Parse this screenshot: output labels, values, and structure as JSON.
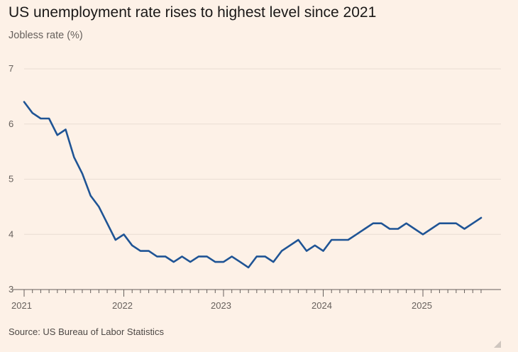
{
  "chart_data": {
    "type": "line",
    "title": "US unemployment rate rises to highest level since 2021",
    "ylabel": "Jobless rate (%)",
    "xlabel": "",
    "source": "Source: US Bureau of Labor Statistics",
    "ylim": [
      3,
      7
    ],
    "yticks": [
      "3",
      "4",
      "5",
      "6",
      "7"
    ],
    "xticks": [
      "2021",
      "2022",
      "2023",
      "2024",
      "2025"
    ],
    "grid": true,
    "line_color": "#1f5495",
    "x_start": "2021-01",
    "x_end": "2025-08",
    "series": [
      {
        "x": [
          "2021-01",
          "2021-02",
          "2021-03",
          "2021-04",
          "2021-05",
          "2021-06",
          "2021-07",
          "2021-08",
          "2021-09",
          "2021-10",
          "2021-11",
          "2021-12",
          "2022-01",
          "2022-02",
          "2022-03",
          "2022-04",
          "2022-05",
          "2022-06",
          "2022-07",
          "2022-08",
          "2022-09",
          "2022-10",
          "2022-11",
          "2022-12",
          "2023-01",
          "2023-02",
          "2023-03",
          "2023-04",
          "2023-05",
          "2023-06",
          "2023-07",
          "2023-08",
          "2023-09",
          "2023-10",
          "2023-11",
          "2023-12",
          "2024-01",
          "2024-02",
          "2024-03",
          "2024-04",
          "2024-05",
          "2024-06",
          "2024-07",
          "2024-08",
          "2024-09",
          "2024-10",
          "2024-11",
          "2024-12",
          "2025-01",
          "2025-02",
          "2025-03",
          "2025-04",
          "2025-05",
          "2025-06",
          "2025-07",
          "2025-08"
        ],
        "values": [
          6.4,
          6.2,
          6.1,
          6.1,
          5.8,
          5.9,
          5.4,
          5.1,
          4.7,
          4.5,
          4.2,
          3.9,
          4.0,
          3.8,
          3.7,
          3.7,
          3.6,
          3.6,
          3.5,
          3.6,
          3.5,
          3.6,
          3.6,
          3.5,
          3.5,
          3.6,
          3.5,
          3.4,
          3.6,
          3.6,
          3.5,
          3.7,
          3.8,
          3.9,
          3.7,
          3.8,
          3.7,
          3.9,
          3.9,
          3.9,
          4.0,
          4.1,
          4.2,
          4.2,
          4.1,
          4.1,
          4.2,
          4.1,
          4.0,
          4.1,
          4.2,
          4.2,
          4.2,
          4.1,
          4.2,
          4.3
        ]
      }
    ]
  }
}
